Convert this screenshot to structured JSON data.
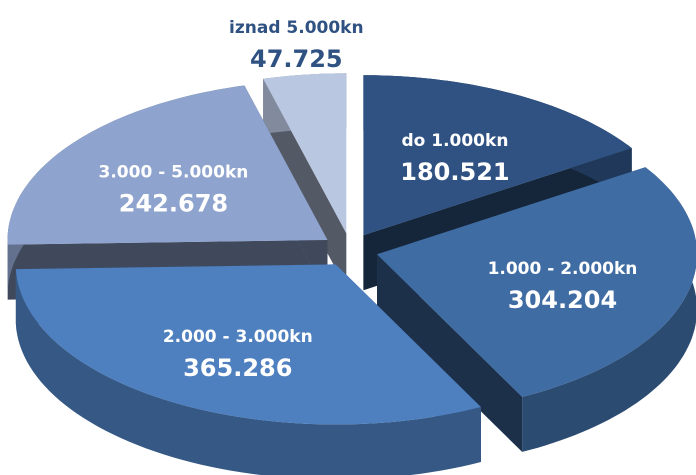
{
  "chart_data": {
    "type": "pie",
    "categories": [
      "do 1.000kn",
      "1.000 - 2.000kn",
      "2.000 - 3.000kn",
      "3.000 - 5.000kn",
      "iznad 5.000kn"
    ],
    "values": [
      180521,
      304204,
      365286,
      242678,
      47725
    ],
    "value_labels": [
      "180.521",
      "304.204",
      "365.286",
      "242.678",
      "47.725"
    ],
    "colors": [
      "#2f5282",
      "#3f6ca3",
      "#4e7fbf",
      "#8ea3cd",
      "#b9c7e1"
    ]
  }
}
